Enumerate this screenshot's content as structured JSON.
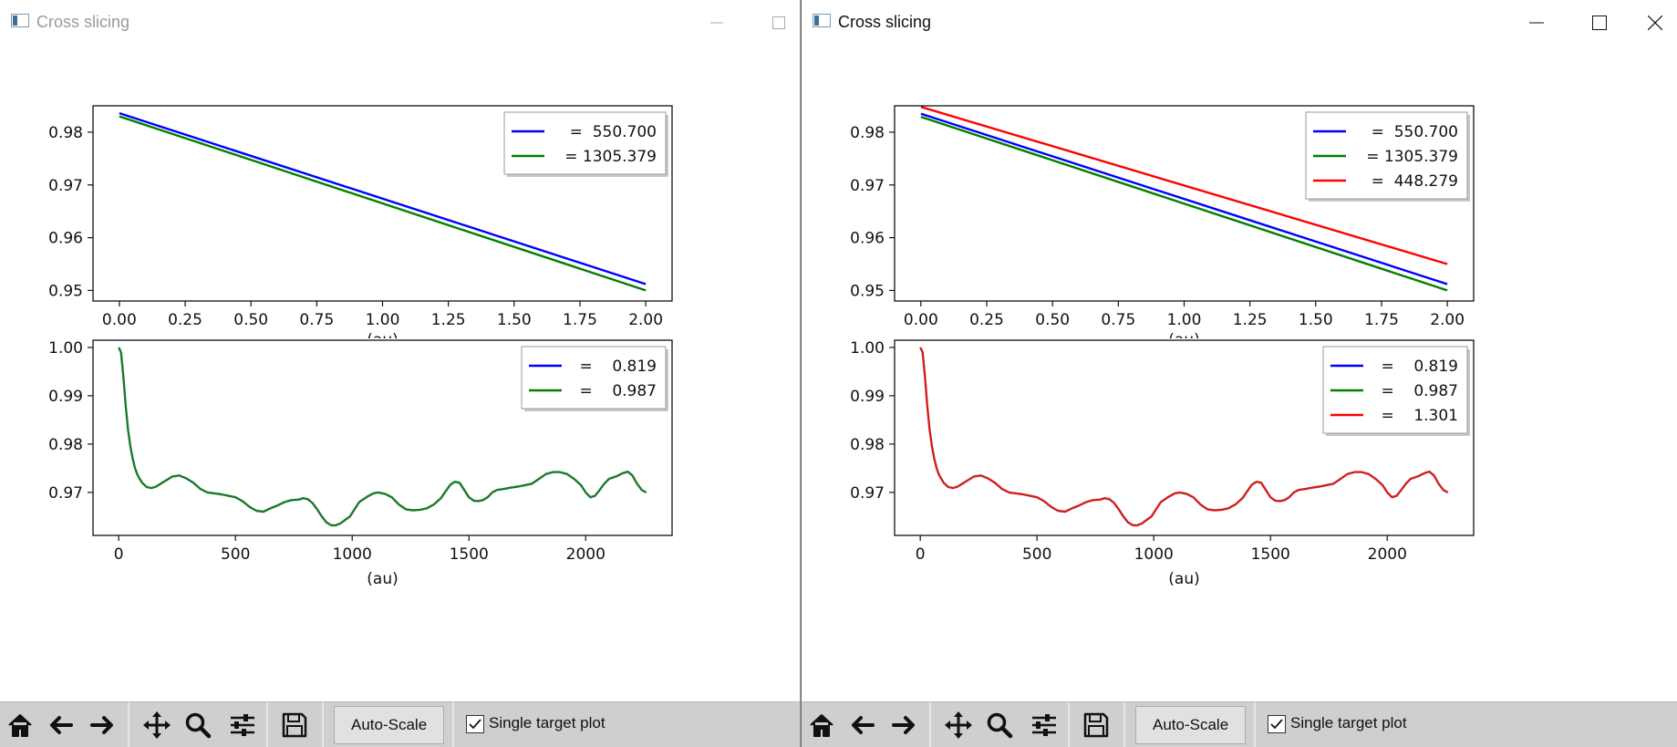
{
  "windows": [
    {
      "title": "Cross slicing",
      "active": false,
      "top_legend": [
        "  =  550.700",
        "  = 1305.379"
      ],
      "bottom_legend": [
        "  =    0.819",
        "  =    0.987"
      ],
      "toolbar": {
        "autoscale_label": "Auto-Scale",
        "single_target_label": "Single target plot",
        "single_target_checked": true
      }
    },
    {
      "title": "Cross slicing",
      "active": true,
      "top_legend": [
        "  =  550.700",
        "  = 1305.379",
        "  =  448.279"
      ],
      "bottom_legend": [
        "  =    0.819",
        "  =    0.987",
        "  =    1.301"
      ],
      "toolbar": {
        "autoscale_label": "Auto-Scale",
        "single_target_label": "Single target plot",
        "single_target_checked": true
      }
    }
  ],
  "colors": {
    "blue": "#0000ff",
    "green": "#008000",
    "red": "#ff0000",
    "dark_green": "#1a7a2a",
    "dark_red": "#d01f1f"
  },
  "toolbar_icons": [
    "home-icon",
    "back-arrow-icon",
    "forward-arrow-icon",
    "pan-move-icon",
    "zoom-magnifier-icon",
    "configure-subplots-icon",
    "save-disk-icon"
  ],
  "chart_data": [
    {
      "type": "line",
      "title": "",
      "xlabel": "(au)",
      "ylabel": "",
      "xlim": [
        -0.1,
        2.1
      ],
      "ylim": [
        0.948,
        0.985
      ],
      "xticks": [
        "0.00",
        "0.25",
        "0.50",
        "0.75",
        "1.00",
        "1.25",
        "1.50",
        "1.75",
        "2.00"
      ],
      "yticks": [
        "0.95",
        "0.96",
        "0.97",
        "0.98"
      ],
      "legend": "upper right",
      "series_by_window": [
        [
          {
            "name": "  =  550.700",
            "color": "#0000ff",
            "x": [
              0,
              2
            ],
            "y": [
              0.9836,
              0.9512
            ]
          },
          {
            "name": "  = 1305.379",
            "color": "#008000",
            "x": [
              0,
              2
            ],
            "y": [
              0.983,
              0.95
            ]
          }
        ],
        [
          {
            "name": "  =  550.700",
            "color": "#0000ff",
            "x": [
              0,
              2
            ],
            "y": [
              0.9835,
              0.9512
            ]
          },
          {
            "name": "  = 1305.379",
            "color": "#008000",
            "x": [
              0,
              2
            ],
            "y": [
              0.9829,
              0.95
            ]
          },
          {
            "name": "  =  448.279",
            "color": "#ff0000",
            "x": [
              0,
              2
            ],
            "y": [
              0.9848,
              0.955
            ]
          }
        ]
      ]
    },
    {
      "type": "line",
      "title": "",
      "xlabel": "(au)",
      "ylabel": "",
      "xlim": [
        -110,
        2370
      ],
      "ylim": [
        0.9611,
        1.0015
      ],
      "xticks": [
        "0",
        "500",
        "1000",
        "1500",
        "2000"
      ],
      "yticks": [
        "0.97",
        "0.98",
        "0.99",
        "1.00"
      ],
      "legend": "upper right",
      "curve": {
        "x": [
          0,
          10,
          20,
          30,
          40,
          50,
          60,
          70,
          80,
          90,
          100,
          120,
          140,
          160,
          180,
          200,
          230,
          260,
          290,
          320,
          350,
          380,
          410,
          440,
          470,
          500,
          530,
          560,
          590,
          620,
          650,
          680,
          710,
          740,
          770,
          790,
          810,
          830,
          850,
          870,
          890,
          910,
          930,
          950,
          970,
          990,
          1010,
          1030,
          1060,
          1090,
          1110,
          1140,
          1170,
          1200,
          1230,
          1260,
          1290,
          1320,
          1350,
          1380,
          1400,
          1420,
          1440,
          1460,
          1480,
          1500,
          1520,
          1540,
          1560,
          1580,
          1600,
          1620,
          1650,
          1680,
          1710,
          1740,
          1770,
          1800,
          1830,
          1860,
          1890,
          1920,
          1950,
          1980,
          2000,
          2020,
          2040,
          2060,
          2080,
          2100,
          2130,
          2160,
          2180,
          2200,
          2220,
          2240,
          2260
        ],
        "y": [
          1.0,
          0.999,
          0.994,
          0.988,
          0.983,
          0.9795,
          0.977,
          0.975,
          0.9737,
          0.9728,
          0.972,
          0.9711,
          0.9709,
          0.9712,
          0.9718,
          0.9724,
          0.9733,
          0.9735,
          0.9729,
          0.972,
          0.9707,
          0.97,
          0.9698,
          0.9696,
          0.9693,
          0.969,
          0.9682,
          0.967,
          0.9662,
          0.966,
          0.9667,
          0.9673,
          0.968,
          0.9684,
          0.9685,
          0.9688,
          0.9686,
          0.9678,
          0.9665,
          0.965,
          0.9638,
          0.9632,
          0.9632,
          0.9636,
          0.9643,
          0.965,
          0.9665,
          0.968,
          0.969,
          0.9698,
          0.97,
          0.9697,
          0.969,
          0.9675,
          0.9665,
          0.9663,
          0.9664,
          0.9667,
          0.9675,
          0.9688,
          0.9702,
          0.9716,
          0.9722,
          0.972,
          0.9705,
          0.969,
          0.9683,
          0.9682,
          0.9684,
          0.969,
          0.97,
          0.9705,
          0.9707,
          0.971,
          0.9712,
          0.9715,
          0.9718,
          0.9728,
          0.9738,
          0.9742,
          0.9742,
          0.9738,
          0.9728,
          0.9715,
          0.97,
          0.969,
          0.9693,
          0.9705,
          0.9718,
          0.9728,
          0.9733,
          0.974,
          0.9743,
          0.9735,
          0.9718,
          0.9705,
          0.97
        ]
      },
      "series_by_window": [
        [
          {
            "name": "  =    0.819",
            "color": "#0000ff"
          },
          {
            "name": "  =    0.987",
            "color": "#008000",
            "draw_color": "#1a7a2a"
          }
        ],
        [
          {
            "name": "  =    0.819",
            "color": "#0000ff"
          },
          {
            "name": "  =    0.987",
            "color": "#008000"
          },
          {
            "name": "  =    1.301",
            "color": "#ff0000",
            "draw_color": "#d01f1f"
          }
        ]
      ]
    }
  ]
}
